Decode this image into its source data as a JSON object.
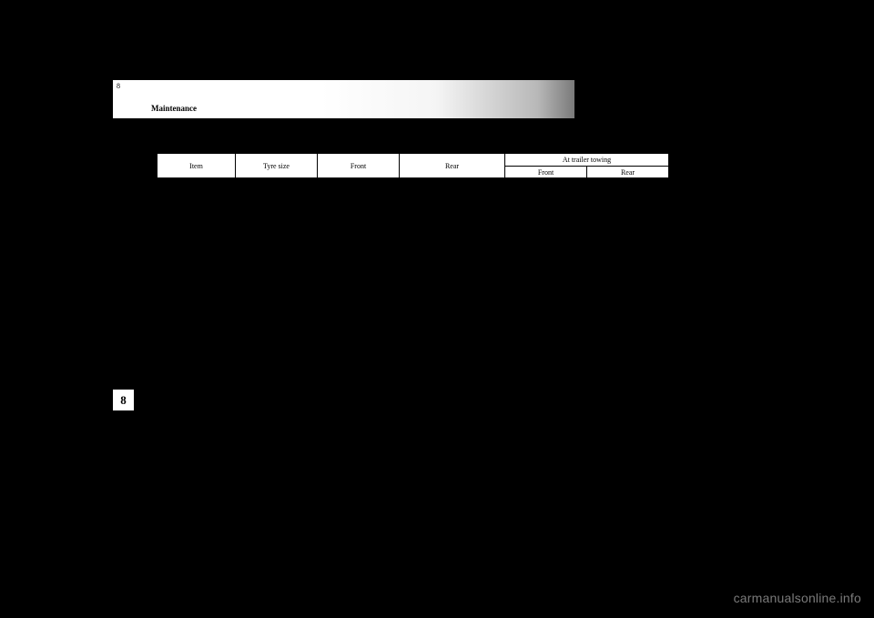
{
  "header": {
    "page_num_top": "8",
    "section_label": "Maintenance"
  },
  "table": {
    "columns": {
      "item": "Item",
      "tyre_size": "Tyre size",
      "front": "Front",
      "rear": "Rear",
      "trailer_group": "At trailer towing",
      "trailer_front": "Front",
      "trailer_rear": "Rear"
    }
  },
  "side_tab": "8",
  "watermark": "carmanualsonline.info"
}
